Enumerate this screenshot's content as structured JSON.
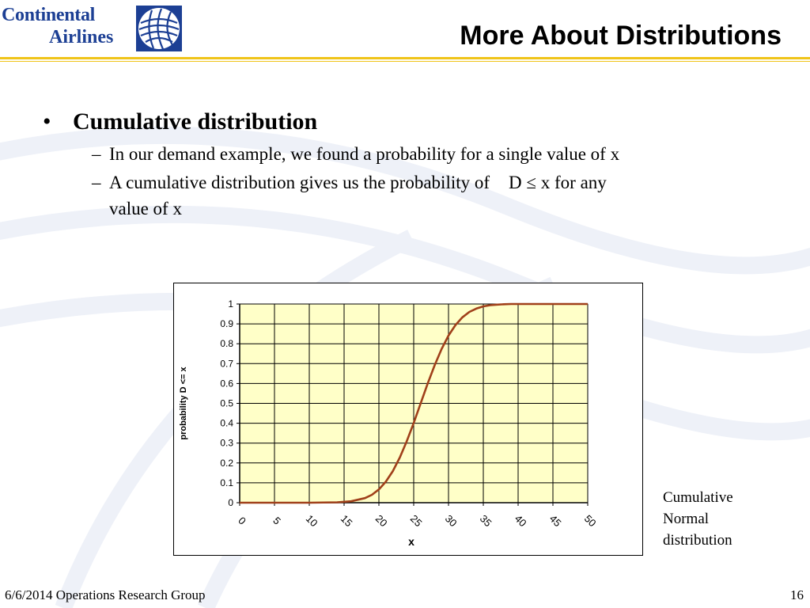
{
  "header": {
    "logo_line1": "Continental",
    "logo_line2": "Airlines",
    "logo_icon": "globe-icon",
    "title": "More About Distributions"
  },
  "content": {
    "bullet": "Cumulative distribution",
    "bullet_symbol": "•",
    "dash_symbol": "–",
    "sub1": "In our demand example, we found a probability for a single value of x",
    "sub2_part1": "A cumulative distribution gives us the probability of",
    "sub2_part2": "D ≤ x for any",
    "sub2_line2": "value of x"
  },
  "caption": {
    "line1": "Cumulative",
    "line2": "Normal",
    "line3": "distribution"
  },
  "footer": {
    "left": "6/6/2014 Operations Research Group",
    "page": "16"
  },
  "colors": {
    "brand_blue": "#1c3f94",
    "rule_gold": "#f0c419",
    "plot_bg": "#ffffc8",
    "curve": "#a0401a"
  },
  "chart_data": {
    "type": "line",
    "xlabel": "x",
    "ylabel": "probability D <= x",
    "x_ticks": [
      "0",
      "5",
      "10",
      "15",
      "20",
      "25",
      "30",
      "35",
      "40",
      "45",
      "50"
    ],
    "y_ticks": [
      "0",
      "0.1",
      "0.2",
      "0.3",
      "0.4",
      "0.5",
      "0.6",
      "0.7",
      "0.8",
      "0.9",
      "1"
    ],
    "xlim": [
      0,
      50
    ],
    "ylim": [
      0,
      1
    ],
    "grid": true,
    "series": [
      {
        "x": [
          0,
          5,
          10,
          14,
          16,
          18,
          19,
          20,
          21,
          22,
          23,
          24,
          25,
          26,
          27,
          28,
          29,
          30,
          31,
          32,
          33,
          34,
          35,
          36,
          37,
          38,
          39,
          40,
          42,
          44,
          46,
          50
        ],
        "values": [
          0,
          0,
          0,
          0.002,
          0.007,
          0.023,
          0.04,
          0.067,
          0.106,
          0.159,
          0.227,
          0.309,
          0.401,
          0.5,
          0.599,
          0.691,
          0.773,
          0.841,
          0.894,
          0.933,
          0.96,
          0.977,
          0.988,
          0.994,
          0.997,
          0.999,
          1,
          1,
          1,
          1,
          1,
          1
        ]
      }
    ]
  }
}
